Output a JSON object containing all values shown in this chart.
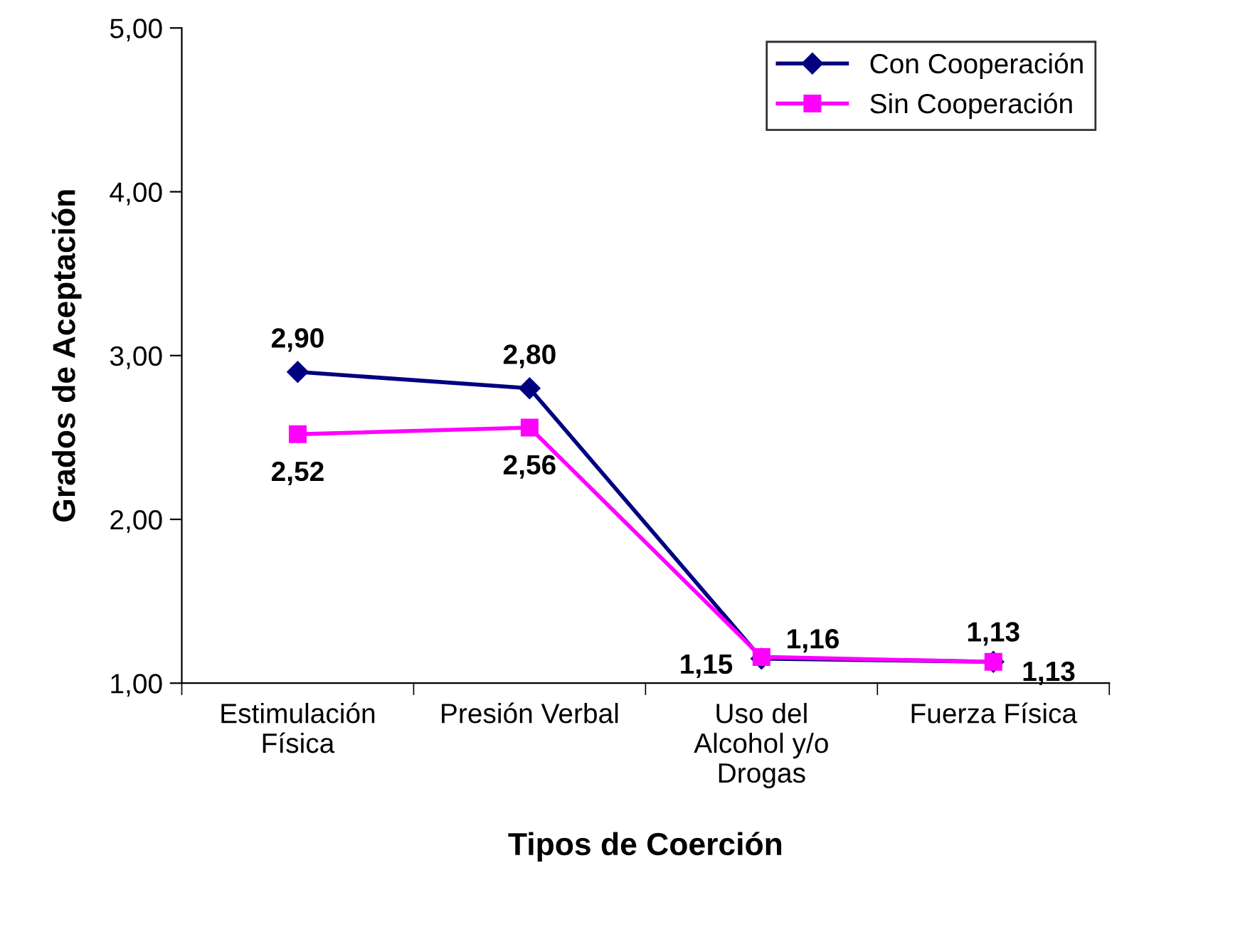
{
  "chart_data": {
    "type": "line",
    "xlabel": "Tipos de Coerción",
    "ylabel": "Grados de Aceptación",
    "categories": [
      "Estimulación\nFísica",
      "Presión Verbal",
      "Uso del\nAlcohol y/o\nDrogas",
      "Fuerza Física"
    ],
    "series": [
      {
        "name": "Con Cooperación",
        "color": "#000080",
        "marker": "diamond",
        "values": [
          2.9,
          2.8,
          1.15,
          1.13
        ],
        "value_labels": [
          "2,90",
          "2,80",
          "1,15",
          "1,13"
        ]
      },
      {
        "name": "Sin Cooperación",
        "color": "#ff00ff",
        "marker": "square",
        "values": [
          2.52,
          2.56,
          1.16,
          1.13
        ],
        "value_labels": [
          "2,52",
          "2,56",
          "1,16",
          "1,13"
        ]
      }
    ],
    "ylim": [
      1,
      5
    ],
    "yticks": [
      {
        "value": 1,
        "label": "1,00"
      },
      {
        "value": 2,
        "label": "2,00"
      },
      {
        "value": 3,
        "label": "3,00"
      },
      {
        "value": 4,
        "label": "4,00"
      },
      {
        "value": 5,
        "label": "5,00"
      }
    ],
    "grid": false,
    "legend": "top right",
    "line_style": "solid"
  }
}
